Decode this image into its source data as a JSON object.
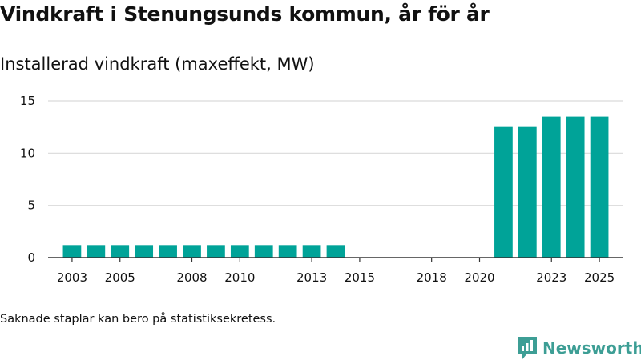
{
  "header": {
    "title": "Vindkraft i Stenungsunds kommun, år för år",
    "subtitle": "Installerad vindkraft (maxeffekt, MW)"
  },
  "footnote": "Saknade staplar kan bero på statistiksekretess.",
  "brand": {
    "name": "Newsworthy",
    "icon": "newsworthy-logo-icon",
    "color": "#3d9e95"
  },
  "chart_data": {
    "type": "bar",
    "title": "Installerad vindkraft (maxeffekt, MW)",
    "xlabel": "",
    "ylabel": "",
    "ylim": [
      0,
      15
    ],
    "yticks": [
      0,
      5,
      10,
      15
    ],
    "xlim": [
      2002,
      2026
    ],
    "xticks": [
      2003,
      2005,
      2008,
      2010,
      2013,
      2015,
      2018,
      2020,
      2023,
      2025
    ],
    "grid": true,
    "bar_color": "#00a398",
    "categories": [
      2003,
      2004,
      2005,
      2006,
      2007,
      2008,
      2009,
      2010,
      2011,
      2012,
      2013,
      2014,
      2021,
      2022,
      2023,
      2024,
      2025
    ],
    "values": [
      1.2,
      1.2,
      1.2,
      1.2,
      1.2,
      1.2,
      1.2,
      1.2,
      1.2,
      1.2,
      1.2,
      1.2,
      12.5,
      12.5,
      13.5,
      13.5,
      13.5
    ]
  }
}
